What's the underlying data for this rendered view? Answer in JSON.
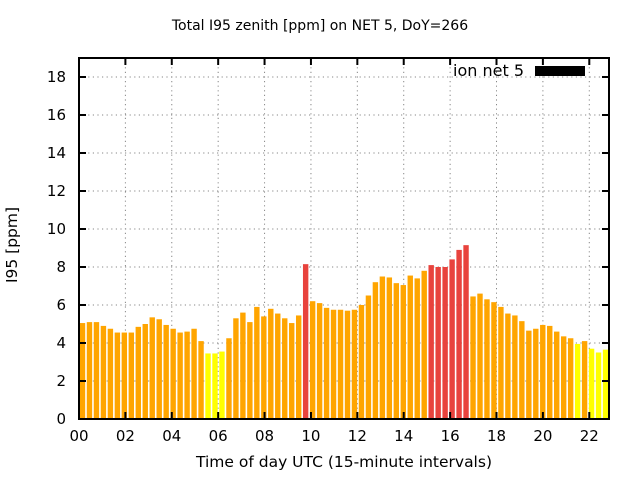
{
  "title": "Total I95 zenith [ppm] on NET 5, DoY=266",
  "legend": {
    "label": "ion net 5",
    "swatch_color": "#000000"
  },
  "chart_data": {
    "type": "bar",
    "title": "Total I95 zenith [ppm] on NET 5, DoY=266",
    "xlabel": "Time of day UTC (15-minute intervals)",
    "ylabel": "I95 [ppm]",
    "x_tick_labels": [
      "00",
      "02",
      "04",
      "06",
      "08",
      "10",
      "12",
      "14",
      "16",
      "18",
      "20",
      "22"
    ],
    "x_tick_hours": [
      0,
      2,
      4,
      6,
      8,
      10,
      12,
      14,
      16,
      18,
      20,
      22
    ],
    "xlim_hours": [
      0,
      22.85
    ],
    "y_ticks": [
      0,
      2,
      4,
      6,
      8,
      10,
      12,
      14,
      16,
      18
    ],
    "ylim": [
      0,
      19
    ],
    "grid": true,
    "legend_position": "top-right-inside",
    "series": [
      {
        "name": "ion net 5",
        "values": [
          5.05,
          5.1,
          5.1,
          4.9,
          4.75,
          4.55,
          4.55,
          4.55,
          4.85,
          5.0,
          5.35,
          5.25,
          4.95,
          4.75,
          4.55,
          4.6,
          4.75,
          4.1,
          3.45,
          3.45,
          3.55,
          4.25,
          5.3,
          5.6,
          5.1,
          5.9,
          5.4,
          5.8,
          5.55,
          5.3,
          5.05,
          5.45,
          8.15,
          6.2,
          6.1,
          5.85,
          5.75,
          5.75,
          5.7,
          5.75,
          6.0,
          6.5,
          7.2,
          7.5,
          7.45,
          7.15,
          7.05,
          7.55,
          7.4,
          7.8,
          8.1,
          8.0,
          8.0,
          8.4,
          8.9,
          9.15,
          6.45,
          6.6,
          6.3,
          6.15,
          5.9,
          5.55,
          5.45,
          5.15,
          4.65,
          4.75,
          4.95,
          4.9,
          4.6,
          4.35,
          4.25,
          3.95,
          4.1,
          3.7,
          3.5,
          3.65
        ]
      }
    ],
    "bar_colors": {
      "low": "#ffff00",
      "normal": "#ffa500",
      "high": "#e8433d"
    },
    "color_thresholds": {
      "yellow_below": 4,
      "red_at_or_above": 8
    }
  }
}
